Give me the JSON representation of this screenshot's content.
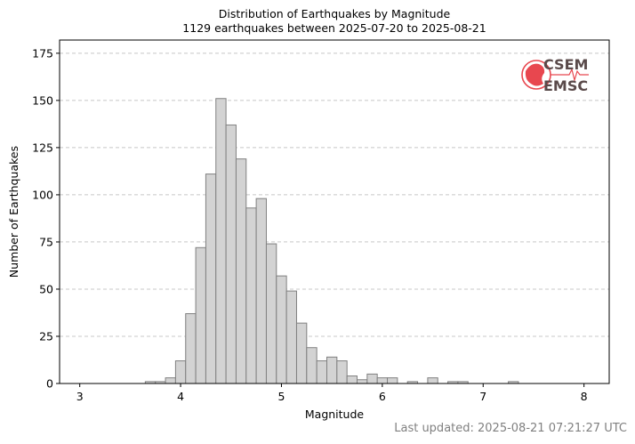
{
  "chart_data": {
    "type": "bar",
    "title": "Distribution of Earthquakes by Magnitude",
    "subtitle": "1129 earthquakes between 2025-07-20 to 2025-08-21",
    "xlabel": "Magnitude",
    "ylabel": "Number of Earthquakes",
    "xlim": [
      2.8,
      8.25
    ],
    "ylim": [
      0,
      182
    ],
    "xticks": [
      "3",
      "4",
      "5",
      "6",
      "7",
      "8"
    ],
    "yticks": [
      "0",
      "25",
      "50",
      "75",
      "100",
      "125",
      "150",
      "175"
    ],
    "grid": "horizontal dashed",
    "bin_width": 0.1,
    "bins": [
      {
        "x": 3.7,
        "value": 1
      },
      {
        "x": 3.8,
        "value": 1
      },
      {
        "x": 3.9,
        "value": 3
      },
      {
        "x": 4.0,
        "value": 12
      },
      {
        "x": 4.1,
        "value": 37
      },
      {
        "x": 4.2,
        "value": 72
      },
      {
        "x": 4.3,
        "value": 111
      },
      {
        "x": 4.4,
        "value": 151
      },
      {
        "x": 4.5,
        "value": 137
      },
      {
        "x": 4.6,
        "value": 119
      },
      {
        "x": 4.7,
        "value": 93
      },
      {
        "x": 4.8,
        "value": 98
      },
      {
        "x": 4.9,
        "value": 74
      },
      {
        "x": 5.0,
        "value": 57
      },
      {
        "x": 5.1,
        "value": 49
      },
      {
        "x": 5.2,
        "value": 32
      },
      {
        "x": 5.3,
        "value": 19
      },
      {
        "x": 5.4,
        "value": 12
      },
      {
        "x": 5.5,
        "value": 14
      },
      {
        "x": 5.6,
        "value": 12
      },
      {
        "x": 5.7,
        "value": 4
      },
      {
        "x": 5.8,
        "value": 2
      },
      {
        "x": 5.9,
        "value": 5
      },
      {
        "x": 6.0,
        "value": 3
      },
      {
        "x": 6.1,
        "value": 3
      },
      {
        "x": 6.3,
        "value": 1
      },
      {
        "x": 6.5,
        "value": 3
      },
      {
        "x": 6.7,
        "value": 1
      },
      {
        "x": 6.8,
        "value": 1
      },
      {
        "x": 7.3,
        "value": 1
      }
    ],
    "colors": {
      "bar_fill": "#d3d3d3",
      "bar_edge": "#808080",
      "grid": "#c8c8c8"
    }
  },
  "logo": {
    "line1": "CSEM",
    "line2": "EMSC",
    "color": "#e8474f"
  },
  "footer": {
    "last_updated": "Last updated: 2025-08-21 07:21:27 UTC"
  }
}
